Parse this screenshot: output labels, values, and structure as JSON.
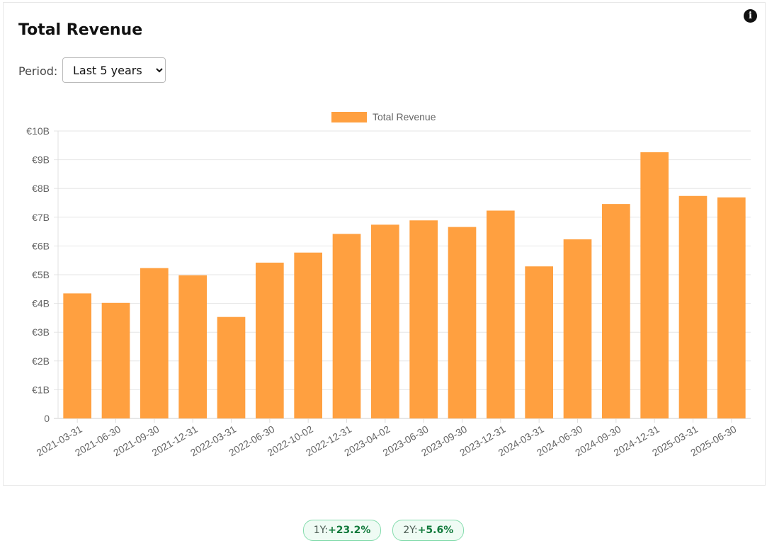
{
  "header": {
    "title": "Total Revenue"
  },
  "period": {
    "label": "Period:",
    "selected": "Last 5 years"
  },
  "icons": {
    "info": "info-icon"
  },
  "colors": {
    "bar": "#ffa040",
    "grid": "#e6e6e6",
    "badge_positive": "#127a3c"
  },
  "chart_data": {
    "type": "bar",
    "title": "",
    "xlabel": "",
    "ylabel": "",
    "legend": {
      "position": "top-center"
    },
    "grid": true,
    "ylim": [
      0,
      10
    ],
    "yticks": [
      "0",
      "€1B",
      "€2B",
      "€3B",
      "€4B",
      "€5B",
      "€6B",
      "€7B",
      "€8B",
      "€9B",
      "€10B"
    ],
    "categories": [
      "2021-03-31",
      "2021-06-30",
      "2021-09-30",
      "2021-12-31",
      "2022-03-31",
      "2022-06-30",
      "2022-10-02",
      "2022-12-31",
      "2023-04-02",
      "2023-06-30",
      "2023-09-30",
      "2023-12-31",
      "2024-03-31",
      "2024-06-30",
      "2024-09-30",
      "2024-12-31",
      "2025-03-31",
      "2025-06-30"
    ],
    "series": [
      {
        "name": "Total Revenue",
        "color": "#ffa040",
        "values": [
          4.35,
          4.02,
          5.23,
          4.98,
          3.53,
          5.42,
          5.77,
          6.42,
          6.74,
          6.89,
          6.66,
          7.23,
          5.29,
          6.23,
          7.46,
          9.26,
          7.74,
          7.69
        ]
      }
    ]
  },
  "badges": [
    {
      "label": "1Y:",
      "value": "+23.2%"
    },
    {
      "label": "2Y:",
      "value": "+5.6%"
    }
  ]
}
